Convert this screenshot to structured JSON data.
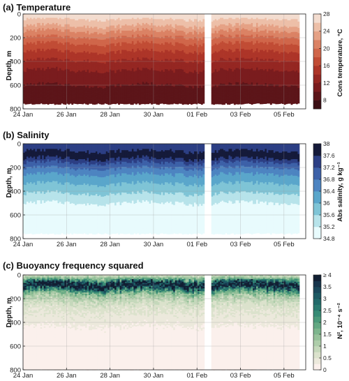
{
  "chart_data": [
    {
      "type": "heatmap",
      "title": "(a) Temperature",
      "ylabel": "Depth, m",
      "xlabel": "",
      "ylim": [
        800,
        0
      ],
      "yticks": [
        0,
        200,
        400,
        600,
        800
      ],
      "xlim": [
        "2018-01-24",
        "2018-02-06"
      ],
      "xtick_labels": [
        "24 Jan",
        "26 Jan",
        "28 Jan",
        "30 Jan",
        "01 Feb",
        "03 Feb",
        "05 Feb"
      ],
      "grid": true,
      "colorbar": {
        "label": "Cons temperature, °C",
        "tick_labels": [
          "8",
          "12",
          "16",
          "20",
          "24",
          "28"
        ],
        "range": [
          6,
          28
        ],
        "levels": [
          6,
          8,
          10,
          12,
          14,
          16,
          18,
          20,
          22,
          24,
          26,
          28
        ],
        "colors": [
          "#3b0f14",
          "#5c1519",
          "#7a1c1e",
          "#952722",
          "#ad3528",
          "#c14c35",
          "#d0664a",
          "#db8264",
          "#e5a185",
          "#edbfa8",
          "#f3dccf"
        ]
      },
      "field": {
        "surface_value": 27,
        "profile": [
          [
            0,
            27
          ],
          [
            40,
            26
          ],
          [
            80,
            25
          ],
          [
            120,
            23
          ],
          [
            170,
            21
          ],
          [
            220,
            19
          ],
          [
            280,
            17
          ],
          [
            350,
            15
          ],
          [
            430,
            13
          ],
          [
            520,
            11
          ],
          [
            600,
            10
          ],
          [
            680,
            9
          ],
          [
            760,
            8
          ]
        ],
        "max_depth": 760,
        "gaps": [
          [
            "2018-02-01T09:00",
            "2018-02-01T15:00"
          ]
        ],
        "end": "2018-02-05T17:00"
      }
    },
    {
      "type": "heatmap",
      "title": "(b) Salinity",
      "ylabel": "Depth, m",
      "xlabel": "",
      "ylim": [
        800,
        0
      ],
      "yticks": [
        0,
        200,
        400,
        600,
        800
      ],
      "xlim": [
        "2018-01-24",
        "2018-02-06"
      ],
      "xtick_labels": [
        "24 Jan",
        "26 Jan",
        "28 Jan",
        "30 Jan",
        "01 Feb",
        "03 Feb",
        "05 Feb"
      ],
      "grid": true,
      "colorbar": {
        "label": "Abs salinity, g kg⁻¹",
        "tick_labels": [
          "34.8",
          "35.2",
          "35.6",
          "36",
          "36.4",
          "36.8",
          "37.2",
          "37.6",
          "38"
        ],
        "range": [
          34.8,
          38
        ],
        "levels": [
          34.8,
          35.2,
          35.6,
          36.0,
          36.4,
          36.8,
          37.2,
          37.6,
          38.0
        ],
        "colors": [
          "#e8fbfd",
          "#b7e3ea",
          "#7fc4d6",
          "#5aa6cb",
          "#4d84c1",
          "#3d61a8",
          "#2c3f84",
          "#151a3a"
        ]
      },
      "field": {
        "profile": [
          [
            0,
            37.3
          ],
          [
            40,
            37.5
          ],
          [
            80,
            37.7
          ],
          [
            110,
            37.8
          ],
          [
            140,
            37.4
          ],
          [
            180,
            37.0
          ],
          [
            230,
            36.6
          ],
          [
            290,
            36.2
          ],
          [
            360,
            35.9
          ],
          [
            440,
            35.5
          ],
          [
            520,
            35.1
          ],
          [
            760,
            35.0
          ]
        ],
        "max_depth": 760,
        "gaps": [
          [
            "2018-02-01T09:00",
            "2018-02-01T15:00"
          ]
        ],
        "end": "2018-02-05T17:00"
      }
    },
    {
      "type": "heatmap",
      "title": "(c) Buoyancy frequency squared",
      "ylabel": "Depth, m",
      "xlabel": "",
      "ylim": [
        800,
        0
      ],
      "yticks": [
        0,
        200,
        400,
        600,
        800
      ],
      "xlim": [
        "2018-01-24",
        "2018-02-06"
      ],
      "xtick_labels": [
        "24 Jan",
        "26 Jan",
        "28 Jan",
        "30 Jan",
        "01 Feb",
        "03 Feb",
        "05 Feb"
      ],
      "grid": true,
      "colorbar": {
        "label": "N², 10⁻⁴ s⁻²",
        "tick_labels": [
          "0",
          "0.5",
          "1",
          "1.5",
          "2",
          "2.5",
          "3",
          "3.5",
          "≥ 4"
        ],
        "range": [
          0,
          4
        ],
        "levels": [
          0,
          0.25,
          0.5,
          0.75,
          1.0,
          1.25,
          1.5,
          1.75,
          2.0,
          2.25,
          2.5,
          2.75,
          3.0,
          3.25,
          3.5,
          3.75,
          4.0
        ],
        "colors": [
          "#fbf0ec",
          "#ece9dc",
          "#dbe2cc",
          "#c5d8bb",
          "#aecdaa",
          "#96c19a",
          "#7db58d",
          "#63a882",
          "#4b9a7a",
          "#378b75",
          "#2a7a70",
          "#226a6a",
          "#1d5963",
          "#1a475a",
          "#17354c",
          "#121f33"
        ]
      },
      "field": {
        "profile": [
          [
            0,
            0.6
          ],
          [
            30,
            1.5
          ],
          [
            60,
            3.2
          ],
          [
            80,
            4.0
          ],
          [
            100,
            3.6
          ],
          [
            120,
            2.6
          ],
          [
            150,
            1.6
          ],
          [
            180,
            1.1
          ],
          [
            220,
            0.8
          ],
          [
            280,
            0.55
          ],
          [
            360,
            0.4
          ],
          [
            450,
            0.2
          ],
          [
            600,
            0.05
          ],
          [
            800,
            0.0
          ]
        ],
        "max_depth": 800,
        "gaps": [
          [
            "2018-02-01T09:00",
            "2018-02-01T15:00"
          ]
        ],
        "end": "2018-02-05T17:00"
      }
    }
  ]
}
